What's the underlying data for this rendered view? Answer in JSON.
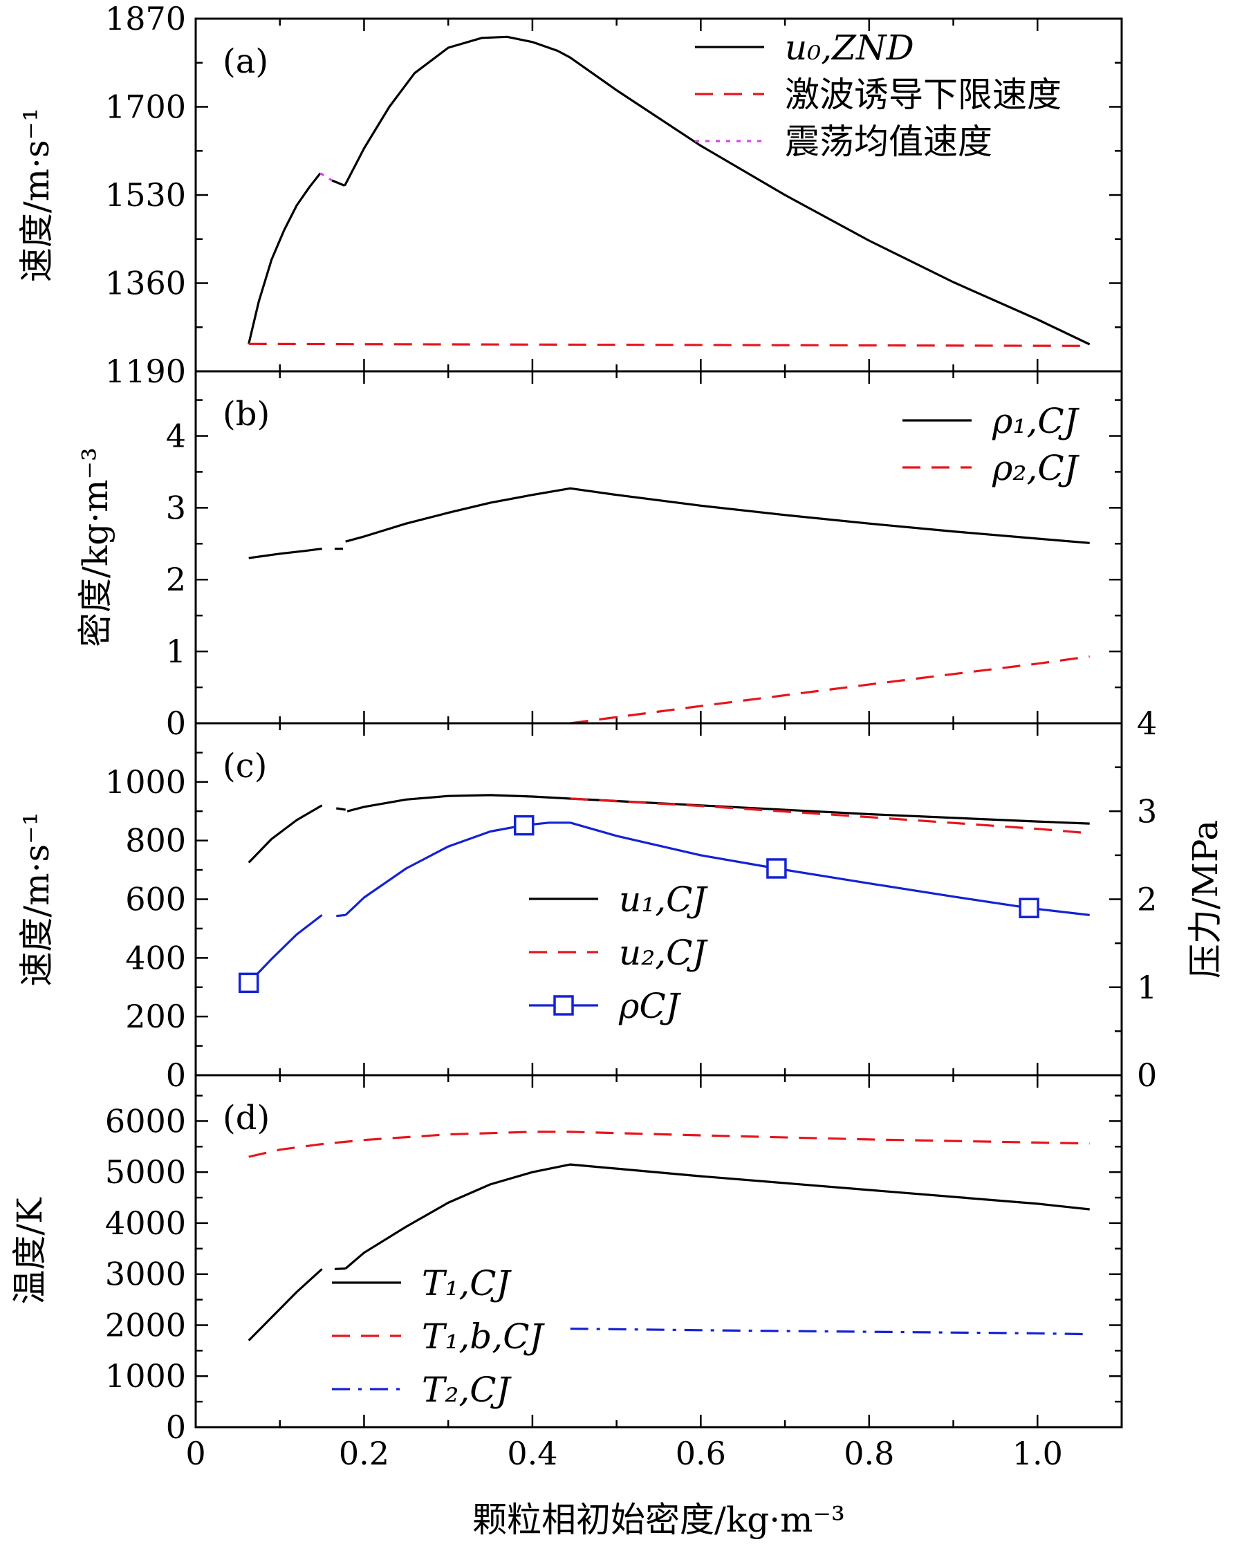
{
  "figure_title": "",
  "x_axis": {
    "label": "颗粒相初始密度/kg·m⁻³",
    "ticks": [
      {
        "v": 0,
        "t": "0"
      },
      {
        "v": 0.2,
        "t": "0.2"
      },
      {
        "v": 0.4,
        "t": "0.4"
      },
      {
        "v": 0.6,
        "t": "0.6"
      },
      {
        "v": 0.8,
        "t": "0.8"
      },
      {
        "v": 1.0,
        "t": "1.0"
      }
    ],
    "range": [
      0,
      1.1
    ]
  },
  "colors": {
    "black": "#000000",
    "red": "#e8141c",
    "magenta": "#d946ef",
    "blue": "#1422d4"
  },
  "chart_data": [
    {
      "panel": "a",
      "label": "(a)",
      "type": "line",
      "ylabel": "速度/m·s⁻¹",
      "ylim": [
        1190,
        1870
      ],
      "yticks": [
        {
          "v": 1190,
          "t": "1190"
        },
        {
          "v": 1360,
          "t": "1360"
        },
        {
          "v": 1530,
          "t": "1530"
        },
        {
          "v": 1700,
          "t": "1700"
        },
        {
          "v": 1870,
          "t": "1870"
        }
      ],
      "legend": [
        {
          "name": "u₀,ZND",
          "style": "solid",
          "color": "black"
        },
        {
          "name": "激波诱导下限速度",
          "style": "dashed",
          "color": "red"
        },
        {
          "name": "震荡均值速度",
          "style": "dotted",
          "color": "magenta"
        }
      ],
      "series": [
        {
          "name": "u0,ZND segment 1",
          "style": "solid",
          "color": "black",
          "x": [
            0.063,
            0.075,
            0.09,
            0.105,
            0.12,
            0.135,
            0.148
          ],
          "y": [
            1243,
            1325,
            1405,
            1462,
            1510,
            1545,
            1572
          ]
        },
        {
          "name": "u0,ZND segment 2",
          "style": "solid",
          "color": "black",
          "x": [
            0.162,
            0.177
          ],
          "y": [
            1558,
            1548
          ]
        },
        {
          "name": "u0,ZND segment 3",
          "style": "solid",
          "color": "black",
          "x": [
            0.177,
            0.2,
            0.23,
            0.26,
            0.3,
            0.34,
            0.37,
            0.4,
            0.43,
            0.445,
            0.5,
            0.6,
            0.7,
            0.8,
            0.9,
            1.0,
            1.062
          ],
          "y": [
            1548,
            1620,
            1700,
            1765,
            1814,
            1833,
            1835,
            1825,
            1808,
            1795,
            1732,
            1625,
            1530,
            1442,
            1362,
            1290,
            1242
          ]
        },
        {
          "name": "激波诱导下限速度",
          "style": "dashed",
          "color": "red",
          "x": [
            0.063,
            1.062
          ],
          "y": [
            1243,
            1239
          ]
        },
        {
          "name": "震荡均值速度",
          "style": "dotted",
          "color": "magenta",
          "x": [
            0.148,
            0.162
          ],
          "y": [
            1572,
            1558
          ]
        }
      ]
    },
    {
      "panel": "b",
      "label": "(b)",
      "type": "line",
      "ylabel": "密度/kg·m⁻³",
      "ylim": [
        0,
        4.9
      ],
      "yticks": [
        {
          "v": 0,
          "t": "0"
        },
        {
          "v": 1,
          "t": "1"
        },
        {
          "v": 2,
          "t": "2"
        },
        {
          "v": 3,
          "t": "3"
        },
        {
          "v": 4,
          "t": "4"
        }
      ],
      "legend": [
        {
          "name": "ρ₁,CJ",
          "style": "solid",
          "color": "black"
        },
        {
          "name": "ρ₂,CJ",
          "style": "dashed",
          "color": "red"
        }
      ],
      "series": [
        {
          "name": "ρ1,CJ segment 1",
          "style": "solid",
          "color": "black",
          "x": [
            0.063,
            0.1,
            0.13,
            0.15
          ],
          "y": [
            2.3,
            2.36,
            2.4,
            2.43
          ]
        },
        {
          "name": "ρ1,CJ segment 2",
          "style": "solid",
          "color": "black",
          "x": [
            0.165,
            0.175
          ],
          "y": [
            2.43,
            2.43
          ]
        },
        {
          "name": "ρ1,CJ segment 3",
          "style": "solid",
          "color": "black",
          "x": [
            0.178,
            0.2,
            0.25,
            0.3,
            0.35,
            0.4,
            0.445,
            0.5,
            0.6,
            0.7,
            0.8,
            0.9,
            1.0,
            1.062
          ],
          "y": [
            2.53,
            2.6,
            2.78,
            2.93,
            3.07,
            3.18,
            3.27,
            3.18,
            3.03,
            2.9,
            2.78,
            2.67,
            2.57,
            2.51
          ]
        },
        {
          "name": "ρ2,CJ",
          "style": "dashed",
          "color": "red",
          "x": [
            0.445,
            0.6,
            0.8,
            1.0,
            1.062
          ],
          "y": [
            0.0,
            0.24,
            0.54,
            0.83,
            0.93
          ]
        }
      ]
    },
    {
      "panel": "c",
      "label": "(c)",
      "type": "line",
      "ylabel": "速度/m·s⁻¹",
      "ylabel_right": "压力/MPa",
      "ylim": [
        0,
        1200
      ],
      "ylim_right": [
        0,
        4
      ],
      "yticks": [
        {
          "v": 0,
          "t": "0"
        },
        {
          "v": 200,
          "t": "200"
        },
        {
          "v": 400,
          "t": "400"
        },
        {
          "v": 600,
          "t": "600"
        },
        {
          "v": 800,
          "t": "800"
        },
        {
          "v": 1000,
          "t": "1000"
        }
      ],
      "yticks_right": [
        {
          "v": 0,
          "t": "0"
        },
        {
          "v": 1,
          "t": "1"
        },
        {
          "v": 2,
          "t": "2"
        },
        {
          "v": 3,
          "t": "3"
        },
        {
          "v": 4,
          "t": "4"
        }
      ],
      "legend": [
        {
          "name": "u₁,CJ",
          "style": "solid",
          "color": "black"
        },
        {
          "name": "u₂,CJ",
          "style": "dashed",
          "color": "red"
        },
        {
          "name": "ρCJ",
          "style": "solid-square",
          "color": "blue"
        }
      ],
      "series": [
        {
          "name": "u1,CJ segment 1",
          "style": "solid",
          "color": "black",
          "x": [
            0.063,
            0.09,
            0.12,
            0.15
          ],
          "y": [
            725,
            805,
            870,
            920
          ]
        },
        {
          "name": "u1,CJ segment 2",
          "style": "solid",
          "color": "black",
          "x": [
            0.167,
            0.178
          ],
          "y": [
            910,
            905
          ]
        },
        {
          "name": "u1,CJ segment 3",
          "style": "solid",
          "color": "black",
          "x": [
            0.18,
            0.2,
            0.25,
            0.3,
            0.35,
            0.4,
            0.445,
            0.6,
            0.8,
            1.0,
            1.062
          ],
          "y": [
            900,
            915,
            940,
            952,
            955,
            950,
            943,
            920,
            890,
            865,
            858
          ]
        },
        {
          "name": "u2,CJ",
          "style": "dashed",
          "color": "red",
          "x": [
            0.445,
            0.6,
            0.8,
            1.0,
            1.062
          ],
          "y": [
            943,
            918,
            880,
            840,
            825
          ]
        },
        {
          "name": "ρCJ segment 1",
          "style": "solid",
          "color": "blue",
          "axis": "right",
          "x": [
            0.063,
            0.09,
            0.12,
            0.15
          ],
          "y": [
            1.05,
            1.32,
            1.6,
            1.82
          ]
        },
        {
          "name": "ρCJ segment 2",
          "style": "solid",
          "color": "blue",
          "axis": "right",
          "x": [
            0.167,
            0.178
          ],
          "y": [
            1.81,
            1.82
          ]
        },
        {
          "name": "ρCJ segment 3",
          "style": "solid",
          "color": "blue",
          "axis": "right",
          "x": [
            0.178,
            0.2,
            0.25,
            0.3,
            0.35,
            0.39,
            0.42,
            0.445,
            0.5,
            0.6,
            0.69,
            0.8,
            0.9,
            0.99,
            1.062
          ],
          "y": [
            1.82,
            2.02,
            2.35,
            2.6,
            2.77,
            2.84,
            2.87,
            2.87,
            2.72,
            2.5,
            2.35,
            2.18,
            2.03,
            1.9,
            1.82
          ]
        }
      ],
      "markers": {
        "name": "ρCJ",
        "color": "blue",
        "axis": "right",
        "x": [
          0.063,
          0.39,
          0.69,
          0.99
        ],
        "y": [
          1.05,
          2.84,
          2.35,
          1.9
        ]
      }
    },
    {
      "panel": "d",
      "label": "(d)",
      "type": "line",
      "ylabel": "温度/K",
      "ylim": [
        0,
        6900
      ],
      "yticks": [
        {
          "v": 0,
          "t": "0"
        },
        {
          "v": 1000,
          "t": "1000"
        },
        {
          "v": 2000,
          "t": "2000"
        },
        {
          "v": 3000,
          "t": "3000"
        },
        {
          "v": 4000,
          "t": "4000"
        },
        {
          "v": 5000,
          "t": "5000"
        },
        {
          "v": 6000,
          "t": "6000"
        }
      ],
      "legend": [
        {
          "name": "T₁,CJ",
          "style": "solid",
          "color": "black"
        },
        {
          "name": "T₁,b,CJ",
          "style": "dashed",
          "color": "red"
        },
        {
          "name": "T₂,CJ",
          "style": "dashdot",
          "color": "blue"
        }
      ],
      "series": [
        {
          "name": "T1,CJ segment 1",
          "style": "solid",
          "color": "black",
          "x": [
            0.063,
            0.09,
            0.12,
            0.15
          ],
          "y": [
            1700,
            2150,
            2650,
            3100
          ]
        },
        {
          "name": "T1,CJ segment 2",
          "style": "solid",
          "color": "black",
          "x": [
            0.165,
            0.178
          ],
          "y": [
            3100,
            3110
          ]
        },
        {
          "name": "T1,CJ segment 3",
          "style": "solid",
          "color": "black",
          "x": [
            0.178,
            0.2,
            0.25,
            0.3,
            0.35,
            0.4,
            0.445,
            0.6,
            0.8,
            1.0,
            1.062
          ],
          "y": [
            3110,
            3420,
            3930,
            4400,
            4760,
            5000,
            5150,
            4920,
            4650,
            4380,
            4270
          ]
        },
        {
          "name": "T1,b,CJ",
          "style": "dashed",
          "color": "red",
          "x": [
            0.063,
            0.1,
            0.15,
            0.2,
            0.3,
            0.4,
            0.445,
            0.6,
            0.8,
            1.0,
            1.062
          ],
          "y": [
            5300,
            5440,
            5550,
            5630,
            5740,
            5790,
            5790,
            5720,
            5640,
            5580,
            5560
          ]
        },
        {
          "name": "T2,CJ",
          "style": "dashdot",
          "color": "blue",
          "x": [
            0.445,
            0.6,
            0.8,
            1.0,
            1.062
          ],
          "y": [
            1930,
            1900,
            1870,
            1840,
            1820
          ]
        }
      ]
    }
  ]
}
